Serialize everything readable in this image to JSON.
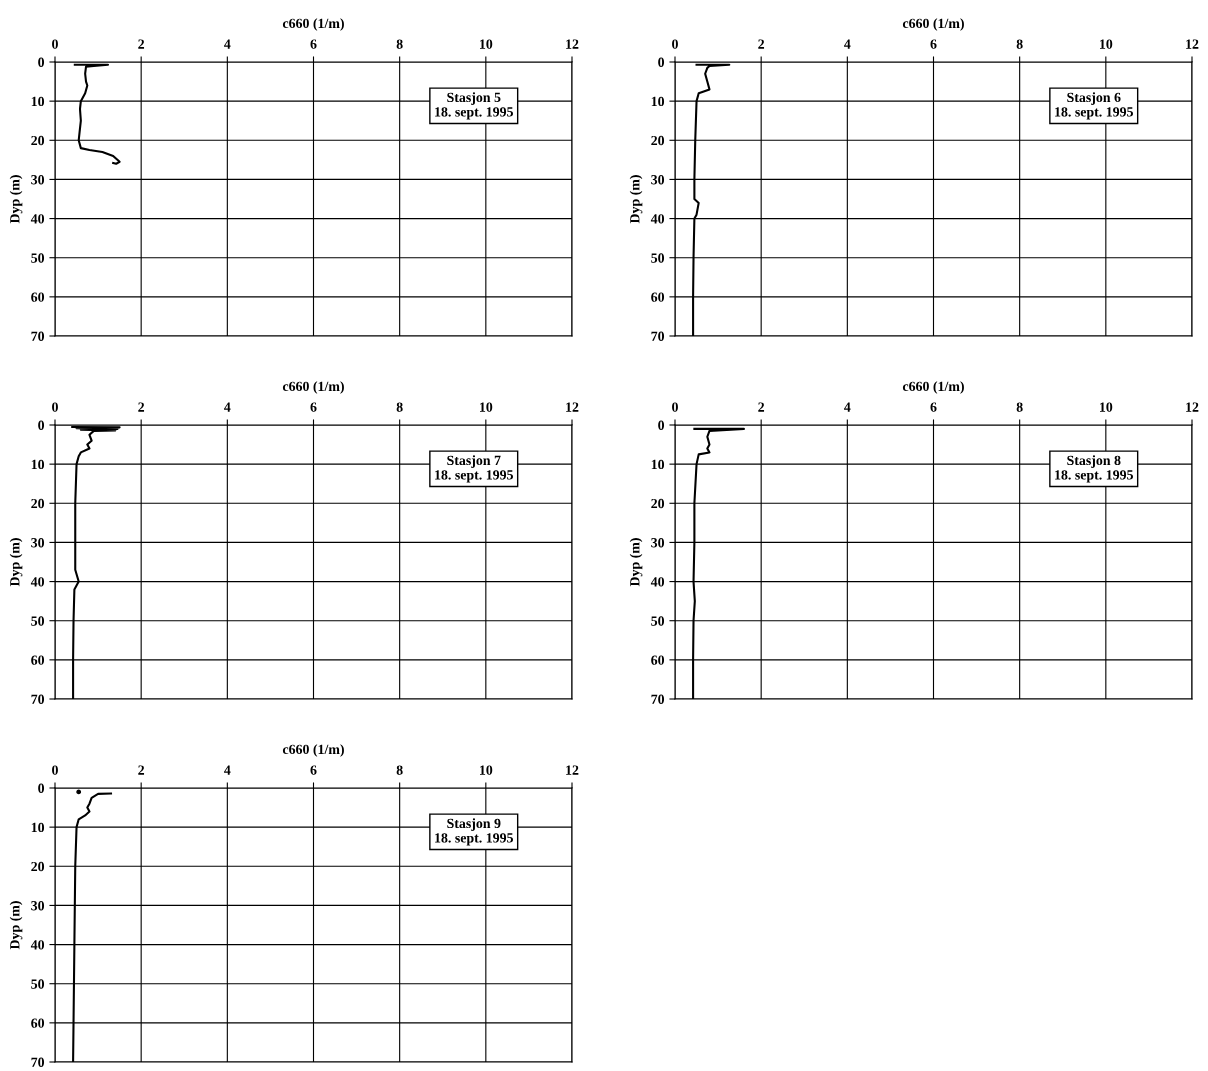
{
  "chart_data": [
    {
      "type": "line",
      "xlabel": "c660 (1/m)",
      "ylabel": "Dyp (m)",
      "xlim": [
        0,
        12
      ],
      "xticks": [
        0,
        2,
        4,
        6,
        8,
        10,
        12
      ],
      "ylim": [
        70,
        0
      ],
      "yticks": [
        0,
        10,
        20,
        30,
        40,
        50,
        60,
        70
      ],
      "grid": true,
      "annotations": [
        "Stasjon 5\n18. sept. 1995"
      ],
      "series": [
        {
          "color": "#000000",
          "x": [
            0.46,
            1.23,
            0.9,
            0.72,
            0.7,
            0.72,
            0.75,
            0.7,
            0.6,
            0.58,
            0.6,
            0.57,
            0.55,
            0.6,
            0.8,
            1.1,
            1.35,
            1.5,
            1.42,
            1.35
          ],
          "values": [
            0.7,
            0.7,
            1.0,
            1.2,
            3,
            5,
            6,
            8,
            10,
            12,
            15,
            18,
            20,
            22,
            22.5,
            23,
            24,
            25.5,
            26,
            25.8
          ]
        }
      ]
    },
    {
      "type": "line",
      "xlabel": "c660 (1/m)",
      "ylabel": "Dyp (m)",
      "xlim": [
        0,
        12
      ],
      "xticks": [
        0,
        2,
        4,
        6,
        8,
        10,
        12
      ],
      "ylim": [
        70,
        0
      ],
      "yticks": [
        0,
        10,
        20,
        30,
        40,
        50,
        60,
        70
      ],
      "grid": true,
      "annotations": [
        "Stasjon 6\n18. sept. 1995"
      ],
      "series": [
        {
          "color": "#000000",
          "x": [
            0.5,
            1.26,
            0.8,
            0.75,
            0.7,
            0.75,
            0.8,
            0.55,
            0.5,
            0.47,
            0.45,
            0.45,
            0.55,
            0.5,
            0.45,
            0.43,
            0.42,
            0.42
          ],
          "values": [
            0.7,
            0.7,
            1.0,
            1.5,
            3,
            5,
            7,
            8,
            10,
            20,
            30,
            35,
            36,
            39,
            40,
            50,
            60,
            70
          ]
        }
      ]
    },
    {
      "type": "line",
      "xlabel": "c660 (1/m)",
      "ylabel": "Dyp (m)",
      "xlim": [
        0,
        12
      ],
      "xticks": [
        0,
        2,
        4,
        6,
        8,
        10,
        12
      ],
      "ylim": [
        70,
        0
      ],
      "yticks": [
        0,
        10,
        20,
        30,
        40,
        50,
        60,
        70
      ],
      "grid": true,
      "annotations": [
        "Stasjon 7\n18. sept. 1995"
      ],
      "series": [
        {
          "color": "#000000",
          "x": [
            0.4,
            1.5,
            0.5,
            1.45,
            0.6,
            1.4,
            0.9,
            0.8,
            0.85,
            0.75,
            0.8,
            0.6,
            0.55,
            0.5,
            0.47,
            0.47,
            0.47,
            0.55,
            0.45,
            0.43,
            0.42,
            0.42
          ],
          "values": [
            0.5,
            0.6,
            0.8,
            1.0,
            1.2,
            1.4,
            1.5,
            2.5,
            4,
            5,
            6,
            7,
            8,
            10,
            20,
            30,
            37,
            40,
            42,
            50,
            60,
            70
          ]
        }
      ]
    },
    {
      "type": "line",
      "xlabel": "c660 (1/m)",
      "ylabel": "Dyp (m)",
      "xlim": [
        0,
        12
      ],
      "xticks": [
        0,
        2,
        4,
        6,
        8,
        10,
        12
      ],
      "ylim": [
        70,
        0
      ],
      "yticks": [
        0,
        10,
        20,
        30,
        40,
        50,
        60,
        70
      ],
      "grid": true,
      "annotations": [
        "Stasjon 8\n18. sept. 1995"
      ],
      "series": [
        {
          "color": "#000000",
          "x": [
            0.45,
            1.6,
            0.8,
            0.75,
            0.8,
            0.75,
            0.8,
            0.55,
            0.5,
            0.45,
            0.45,
            0.43,
            0.46,
            0.43,
            0.42,
            0.42
          ],
          "values": [
            1.0,
            1.0,
            1.5,
            3,
            5,
            6,
            7,
            7.5,
            10,
            20,
            30,
            40,
            45,
            50,
            60,
            70
          ]
        }
      ]
    },
    {
      "type": "line",
      "xlabel": "c660 (1/m)",
      "ylabel": "Dyp (m)",
      "xlim": [
        0,
        12
      ],
      "xticks": [
        0,
        2,
        4,
        6,
        8,
        10,
        12
      ],
      "ylim": [
        70,
        0
      ],
      "yticks": [
        0,
        10,
        20,
        30,
        40,
        50,
        60,
        70
      ],
      "grid": true,
      "annotations": [
        "Stasjon 9\n18. sept. 1995"
      ],
      "series": [
        {
          "color": "#000000",
          "type": "scatter",
          "marker": "circle",
          "x": [
            0.55
          ],
          "values": [
            1.0
          ]
        },
        {
          "color": "#000000",
          "x": [
            1.3,
            1.0,
            0.85,
            0.8,
            0.75,
            0.8,
            0.7,
            0.55,
            0.5,
            0.47,
            0.45,
            0.43,
            0.42
          ],
          "values": [
            1.4,
            1.5,
            2.5,
            4,
            5,
            6,
            7,
            8,
            10,
            20,
            40,
            60,
            70
          ]
        }
      ]
    }
  ]
}
